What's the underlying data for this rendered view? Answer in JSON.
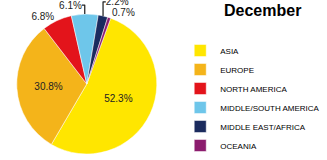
{
  "chart_data": {
    "type": "pie",
    "title": "December",
    "categories": [
      "ASIA",
      "EUROPE",
      "NORTH AMERICA",
      "MIDDLE/SOUTH AMERICA",
      "MIDDLE EAST/AFRICA",
      "OCEANIA"
    ],
    "values": [
      52.3,
      30.8,
      6.8,
      6.1,
      2.2,
      0.7
    ],
    "value_labels": [
      "52.3%",
      "30.8%",
      "6.8%",
      "6.1%",
      "2.2%",
      "0.7%"
    ],
    "colors": [
      "#ffe600",
      "#f4b41a",
      "#e3141b",
      "#6ec6ea",
      "#1b2b5e",
      "#8c1c6e"
    ],
    "data_labels": true,
    "legend": "right"
  }
}
